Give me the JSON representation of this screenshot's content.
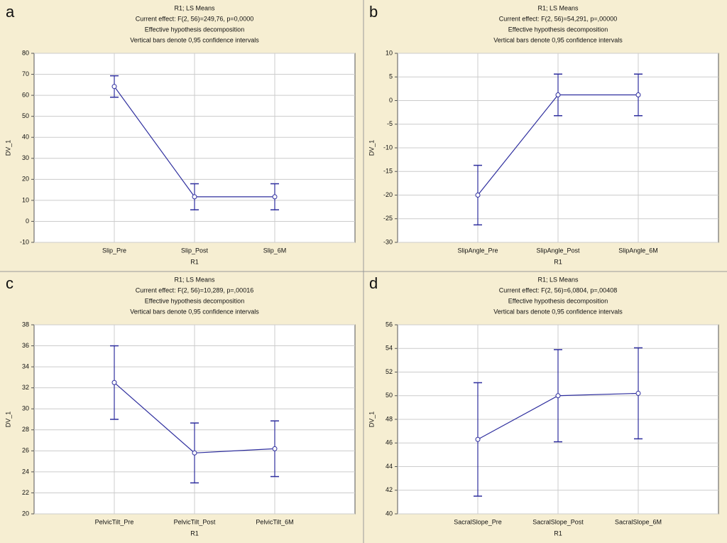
{
  "chart_data": [
    {
      "type": "line",
      "panel_label": "a",
      "title": "R1; LS Means",
      "subtitles": [
        "Current effect: F(2, 56)=249,76, p=0,0000",
        "Effective hypothesis decomposition",
        "Vertical bars denote 0,95 confidence intervals"
      ],
      "x_label": "R1",
      "y_label": "DV_1",
      "categories": [
        "Slip_Pre",
        "Slip_Post",
        "Slip_6M"
      ],
      "series": [
        {
          "color": "#2e2e9e",
          "values": [
            64.2,
            11.7,
            11.7
          ],
          "errors": [
            5.1,
            6.2,
            6.2
          ]
        }
      ],
      "ylim": [
        -10,
        80
      ],
      "yticks": [
        -10,
        0,
        10,
        20,
        30,
        40,
        50,
        60,
        70,
        80
      ],
      "grid": true
    },
    {
      "type": "line",
      "panel_label": "b",
      "title": "R1; LS Means",
      "subtitles": [
        "Current effect: F(2, 56)=54,291, p=,00000",
        "Effective hypothesis decomposition",
        "Vertical bars denote 0,95 confidence intervals"
      ],
      "x_label": "R1",
      "y_label": "DV_1",
      "categories": [
        "SlipAngle_Pre",
        "SlipAngle_Post",
        "SlipAngle_6M"
      ],
      "series": [
        {
          "color": "#2e2e9e",
          "values": [
            -20,
            1.2,
            1.2
          ],
          "errors": [
            6.3,
            4.4,
            4.4
          ]
        }
      ],
      "ylim": [
        -30,
        10
      ],
      "yticks": [
        -30,
        -25,
        -20,
        -15,
        -10,
        -5,
        0,
        5,
        10
      ],
      "grid": true
    },
    {
      "type": "line",
      "panel_label": "c",
      "title": "R1; LS Means",
      "subtitles": [
        "Current effect: F(2, 56)=10,289, p=,00016",
        "Effective hypothesis decomposition",
        "Vertical bars denote 0,95 confidence intervals"
      ],
      "x_label": "R1",
      "y_label": "DV_1",
      "categories": [
        "PelvicTilt_Pre",
        "PelvicTilt_Post",
        "PelvicTilt_6M"
      ],
      "series": [
        {
          "color": "#2e2e9e",
          "values": [
            32.5,
            25.8,
            26.2
          ],
          "errors": [
            3.5,
            2.85,
            2.65
          ]
        }
      ],
      "ylim": [
        20,
        38
      ],
      "yticks": [
        20,
        22,
        24,
        26,
        28,
        30,
        32,
        34,
        36,
        38
      ],
      "grid": true
    },
    {
      "type": "line",
      "panel_label": "d",
      "title": "R1; LS Means",
      "subtitles": [
        "Current effect: F(2, 56)=6,0804, p=,00408",
        "Effective hypothesis decomposition",
        "Vertical bars denote 0,95 confidence intervals"
      ],
      "x_label": "R1",
      "y_label": "DV_1",
      "categories": [
        "SacralSlope_Pre",
        "SacralSlope_Post",
        "SacralSlope_6M"
      ],
      "series": [
        {
          "color": "#2e2e9e",
          "values": [
            46.3,
            50.0,
            50.2
          ],
          "errors": [
            4.8,
            3.9,
            3.85
          ]
        }
      ],
      "ylim": [
        40,
        56
      ],
      "yticks": [
        40,
        42,
        44,
        46,
        48,
        50,
        52,
        54,
        56
      ],
      "grid": true
    }
  ]
}
